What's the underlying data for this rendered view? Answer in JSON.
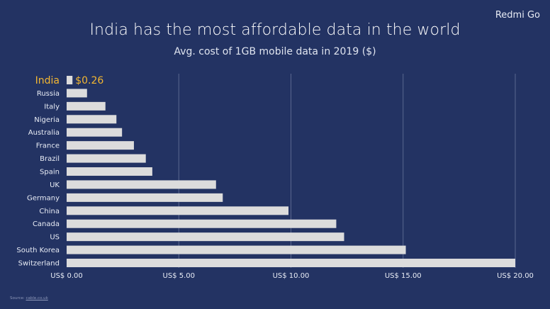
{
  "header": {
    "brand": "Redmi Go",
    "title": "India has the most affordable data in the world",
    "subtitle": "Avg. cost of 1GB mobile data in 2019 ($)"
  },
  "footer": {
    "source_label": "Source:",
    "source_link": "cable.co.uk"
  },
  "colors": {
    "background": "#233363",
    "bar": "#dcdcdc",
    "highlight": "#f2b632",
    "gridline": "#5a678f",
    "label": "#e8ecf5"
  },
  "chart_data": {
    "type": "bar",
    "orientation": "horizontal",
    "title": "India has the most affordable data in the world",
    "subtitle": "Avg. cost of 1GB mobile data in 2019 ($)",
    "categories": [
      "India",
      "Russia",
      "Italy",
      "Nigeria",
      "Australia",
      "France",
      "Brazil",
      "Spain",
      "UK",
      "Germany",
      "China",
      "Canada",
      "US",
      "South Korea",
      "Switzerland"
    ],
    "values": [
      0.26,
      0.91,
      1.73,
      2.22,
      2.47,
      3.0,
      3.53,
      3.82,
      6.66,
      6.96,
      9.89,
      12.02,
      12.37,
      15.12,
      20.0
    ],
    "highlight": {
      "category": "India",
      "label": "$0.26"
    },
    "xlim": [
      0,
      20
    ],
    "xticks": [
      0,
      5,
      10,
      15,
      20
    ],
    "xtick_labels": [
      "US$ 0.00",
      "US$ 5.00",
      "US$ 10.00",
      "US$ 15.00",
      "US$ 20.00"
    ],
    "xlabel": "",
    "ylabel": "",
    "grid": true,
    "legend": "none"
  }
}
